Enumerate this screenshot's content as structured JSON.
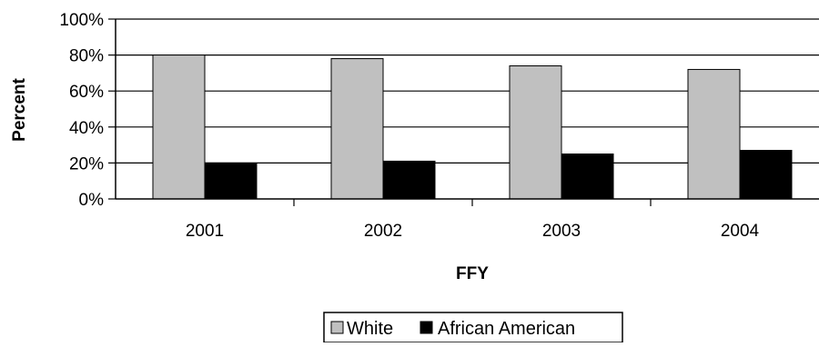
{
  "chart_data": {
    "type": "bar",
    "title": "",
    "xlabel": "FFY",
    "ylabel": "Percent",
    "categories": [
      "2001",
      "2002",
      "2003",
      "2004"
    ],
    "series": [
      {
        "name": "White",
        "values": [
          80,
          78,
          74,
          72
        ],
        "color": "#c0c0c0"
      },
      {
        "name": "African American",
        "values": [
          20,
          21,
          25,
          27
        ],
        "color": "#000000"
      }
    ],
    "ylim": [
      0,
      100
    ],
    "yticks": [
      "0%",
      "20%",
      "40%",
      "60%",
      "80%",
      "100%"
    ],
    "grid": true,
    "legend_position": "bottom"
  }
}
